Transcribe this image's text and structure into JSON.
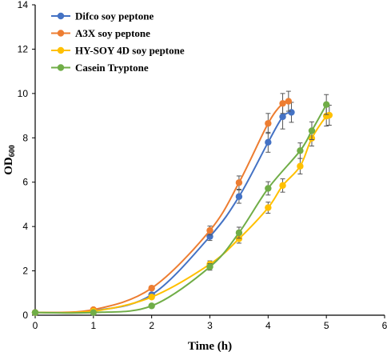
{
  "chart_data": {
    "type": "line",
    "title": "",
    "xlabel": "Time (h)",
    "ylabel_main": "OD",
    "ylabel_sub": "600",
    "xlim": [
      0,
      6
    ],
    "ylim": [
      0,
      14
    ],
    "xticks": [
      0,
      1,
      2,
      3,
      4,
      5,
      6
    ],
    "yticks": [
      0,
      2,
      4,
      6,
      8,
      10,
      12,
      14
    ],
    "grid": false,
    "legend_position": "top-left",
    "series": [
      {
        "name": "Difco soy peptone",
        "color": "#4472C4",
        "x": [
          0,
          1,
          2,
          3,
          3.5,
          4,
          4.25,
          4.4
        ],
        "y": [
          0.12,
          0.2,
          0.92,
          3.55,
          5.35,
          7.8,
          8.95,
          9.15
        ],
        "err": [
          0.03,
          0.05,
          0.1,
          0.18,
          0.3,
          0.45,
          0.55,
          0.45
        ]
      },
      {
        "name": "A3X soy peptone",
        "color": "#ED7D31",
        "x": [
          0,
          1,
          2,
          3,
          3.5,
          4,
          4.25,
          4.35
        ],
        "y": [
          0.12,
          0.25,
          1.22,
          3.82,
          5.98,
          8.65,
          9.55,
          9.65
        ],
        "err": [
          0.03,
          0.05,
          0.1,
          0.2,
          0.3,
          0.45,
          0.45,
          0.45
        ]
      },
      {
        "name": "HY-SOY 4D soy peptone",
        "color": "#FFC000",
        "x": [
          0,
          1,
          2,
          3,
          3.5,
          4,
          4.25,
          4.55,
          4.75,
          5,
          5.05
        ],
        "y": [
          0.12,
          0.18,
          0.82,
          2.3,
          3.45,
          4.85,
          5.85,
          6.72,
          7.98,
          8.98,
          9.02
        ],
        "err": [
          0.03,
          0.04,
          0.08,
          0.15,
          0.2,
          0.25,
          0.3,
          0.35,
          0.35,
          0.45,
          0.45
        ]
      },
      {
        "name": "Casein Tryptone",
        "color": "#70AD47",
        "x": [
          0,
          1,
          2,
          3,
          3.5,
          4,
          4.55,
          4.75,
          5
        ],
        "y": [
          0.12,
          0.12,
          0.42,
          2.18,
          3.72,
          5.72,
          7.42,
          8.32,
          9.5
        ],
        "err": [
          0.03,
          0.04,
          0.06,
          0.15,
          0.25,
          0.3,
          0.35,
          0.4,
          0.45
        ]
      }
    ]
  }
}
